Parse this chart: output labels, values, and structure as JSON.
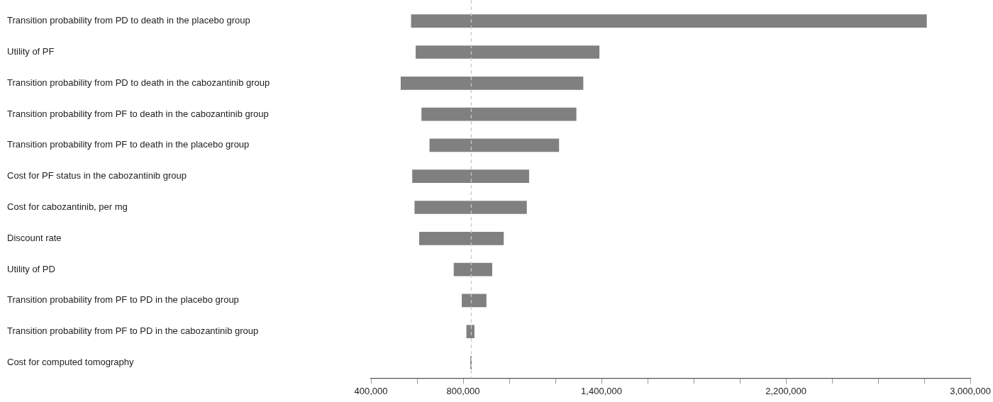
{
  "chart_data": {
    "type": "bar",
    "orientation": "horizontal",
    "categories": [
      "Transition probability from PD to death in the placebo group",
      "Utility of PF",
      "Transition probability from PD to death in the cabozantinib group",
      "Transition probability from PF to death in the cabozantinib group",
      "Transition probability from PF to death in the placebo group",
      "Cost for PF status in the cabozantinib group",
      "Cost for cabozantinib, per mg",
      "Discount rate",
      "Utility of PD",
      "Transition probability from PF to PD in the placebo group",
      "Transition probability from PF to PD in the cabozantinib group",
      "Cost for computed tomography"
    ],
    "base": [
      575000,
      595000,
      530000,
      620000,
      655000,
      580000,
      590000,
      610000,
      760000,
      795000,
      815000,
      832000
    ],
    "values": [
      2235000,
      795000,
      790000,
      670000,
      560000,
      505000,
      485000,
      365000,
      165000,
      105000,
      33000,
      4000
    ],
    "color": "#808080",
    "xlim": [
      400000,
      3000000
    ],
    "xticks": [
      {
        "value": 400000,
        "label": "400,000"
      },
      {
        "value": 600000,
        "label": null
      },
      {
        "value": 800000,
        "label": "800,000"
      },
      {
        "value": 1000000,
        "label": null
      },
      {
        "value": 1200000,
        "label": null
      },
      {
        "value": 1400000,
        "label": "1,400,000"
      },
      {
        "value": 1600000,
        "label": null
      },
      {
        "value": 1800000,
        "label": null
      },
      {
        "value": 2000000,
        "label": null
      },
      {
        "value": 2200000,
        "label": "2,200,000"
      },
      {
        "value": 2400000,
        "label": null
      },
      {
        "value": 2600000,
        "label": null
      },
      {
        "value": 2800000,
        "label": null
      },
      {
        "value": 3000000,
        "label": "3,000,000"
      }
    ],
    "ref_lines": [
      {
        "axis": "x",
        "value": 835000,
        "color": "#c8c8c8",
        "line_style": "dashed"
      }
    ]
  }
}
